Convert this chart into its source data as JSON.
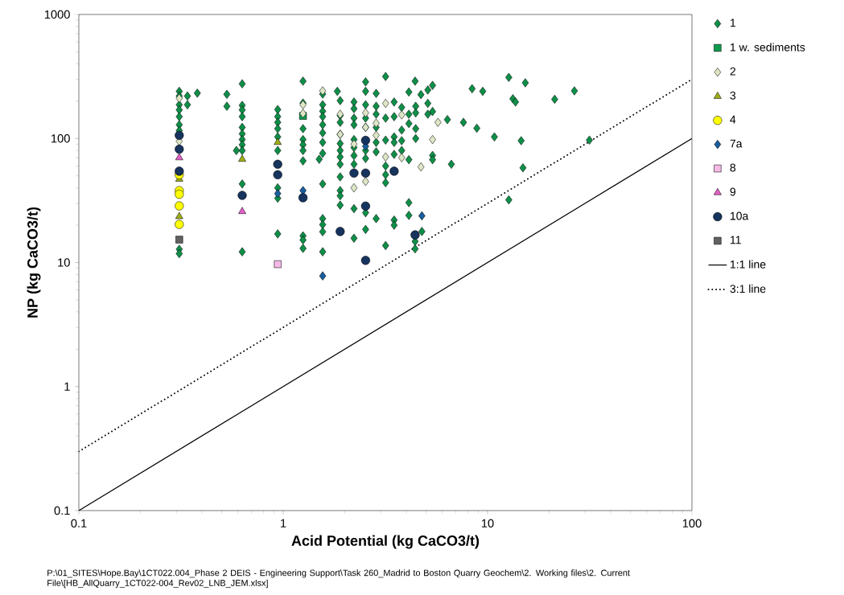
{
  "chart_data": {
    "type": "scatter",
    "xlabel": "Acid Potential (kg CaCO3/t)",
    "ylabel": "NP (kg CaCO3/t)",
    "log": "xy",
    "grid": false,
    "legend": "right",
    "xlim": [
      0.1,
      100
    ],
    "ylim": [
      0.1,
      1000
    ],
    "xticks": [
      0.1,
      1,
      10,
      100
    ],
    "yticks": [
      0.1,
      1,
      10,
      100,
      1000
    ],
    "annotations": [
      "P:\\01_SITES\\Hope.Bay\\1CT022.004_Phase 2 DEIS - Engineering Support\\Task 260_Madrid to Boston Quarry Geochem\\2. Working files\\2. Current File\\[HB_AllQuarry_1CT022-004_Rev02_LNB_JEM.xlsx]"
    ],
    "series": [
      {
        "name": "1",
        "marker": "diamond",
        "color": "#0e8f48",
        "x": [
          0.31,
          0.31,
          0.31,
          0.31,
          0.31,
          0.31,
          0.31,
          0.31,
          0.31,
          0.34,
          0.34,
          0.38,
          0.63,
          0.63,
          0.63,
          0.63,
          0.63,
          0.63,
          0.63,
          0.63,
          0.63,
          0.63,
          0.63,
          0.59,
          0.53,
          0.53,
          0.94,
          0.94,
          0.94,
          0.94,
          0.94,
          0.94,
          0.94,
          0.94,
          0.94,
          1.25,
          1.25,
          1.25,
          1.25,
          1.25,
          1.25,
          1.25,
          1.25,
          1.25,
          1.25,
          1.56,
          1.56,
          1.56,
          1.56,
          1.56,
          1.56,
          1.56,
          1.56,
          1.5,
          1.56,
          1.56,
          1.56,
          1.56,
          1.56,
          1.84,
          3.17,
          2.53,
          2.85,
          4.12,
          4.42,
          4.72,
          5.1,
          5.38,
          8.4,
          9.47,
          12.7,
          15.3,
          13.3,
          1.9,
          1.9,
          1.9,
          1.9,
          1.9,
          1.9,
          1.9,
          1.9,
          1.9,
          1.9,
          1.9,
          1.9,
          2.22,
          2.22,
          2.22,
          2.22,
          2.22,
          2.22,
          2.22,
          2.22,
          2.53,
          2.53,
          2.53,
          2.53,
          2.53,
          2.53,
          2.85,
          2.85,
          2.85,
          2.85,
          2.85,
          3.17,
          3.17,
          3.17,
          3.17,
          3.17,
          3.49,
          3.49,
          3.49,
          3.49,
          3.49,
          3.8,
          3.8,
          3.8,
          3.8,
          4.12,
          4.12,
          4.12,
          4.45,
          4.45,
          4.45,
          4.45,
          5.1,
          5.1,
          5.38,
          5.38,
          5.38,
          6.36,
          7.62,
          8.86,
          10.8,
          14.6,
          6.65,
          14.9,
          2.22,
          2.53,
          2.85,
          3.49,
          3.49,
          4.12,
          4.12,
          2.53,
          2.22,
          3.17,
          4.42,
          4.42,
          4.77,
          12.7,
          13.7,
          21.3,
          26.6,
          31.5
        ],
        "values": [
          240,
          220,
          187,
          170,
          150,
          129,
          116,
          12.8,
          11.8,
          220,
          187,
          232,
          276,
          185,
          170,
          150,
          123,
          109,
          98,
          89,
          80,
          43,
          12.2,
          80,
          227,
          182,
          171,
          150,
          135,
          120,
          103,
          80,
          40,
          33,
          17,
          290,
          193,
          120,
          98,
          89,
          80,
          66,
          16.4,
          15.2,
          13,
          228,
          187,
          166,
          150,
          129,
          111,
          93,
          76,
          68,
          43,
          22.6,
          20.2,
          17.7,
          12.2,
          240,
          316,
          286,
          231,
          237,
          290,
          226,
          246,
          268,
          252,
          240,
          311,
          281,
          209,
          202,
          153,
          135,
          108,
          91,
          80,
          71,
          62,
          49,
          38,
          34.5,
          29,
          197,
          174,
          146,
          129,
          98,
          84.5,
          72.8,
          62,
          240,
          187,
          146,
          123,
          80,
          69,
          182,
          157,
          123,
          93,
          78,
          146,
          97,
          60,
          51,
          44,
          197,
          150,
          103,
          93,
          74.5,
          178,
          117,
          96,
          80,
          157,
          132,
          67.5,
          182,
          161,
          120,
          100,
          192,
          157,
          165,
          73,
          67.5,
          142,
          135,
          121,
          103,
          96,
          62,
          58,
          27.2,
          25.2,
          22.6,
          22,
          20,
          30.4,
          24,
          18.5,
          15.7,
          13.7,
          14.8,
          12.9,
          17.8,
          32,
          197,
          207,
          242,
          97
        ]
      },
      {
        "name": "1 w. sediments",
        "marker": "square",
        "color": "#0f9a4e",
        "x": [
          1.25
        ],
        "values": [
          152
        ]
      },
      {
        "name": "2",
        "marker": "diamond",
        "color": "#dde6c6",
        "x": [
          0.31,
          0.31,
          1.25,
          1.25,
          1.56,
          1.9,
          1.9,
          2.22,
          2.53,
          2.53,
          2.85,
          2.85,
          3.17,
          3.17,
          3.8,
          3.8,
          4.72,
          5.38,
          5.72,
          2.53,
          2.22
        ],
        "values": [
          211,
          95,
          187,
          159,
          242,
          157,
          108,
          90,
          161,
          123,
          133,
          106,
          192,
          71,
          155,
          70,
          59,
          98,
          135,
          45,
          40
        ]
      },
      {
        "name": "3",
        "marker": "triangle",
        "color": "#9fae16",
        "x": [
          0.31,
          0.31,
          0.63,
          0.94
        ],
        "values": [
          47,
          23.5,
          68,
          93
        ]
      },
      {
        "name": "4",
        "marker": "circle",
        "color": "#ffff00",
        "x": [
          0.31,
          0.31,
          0.31,
          0.31,
          0.31
        ],
        "values": [
          51,
          38,
          35.5,
          28.6,
          20.3
        ]
      },
      {
        "name": "7a",
        "marker": "diamond",
        "color": "#1a5e9e",
        "x": [
          0.94,
          1.25,
          1.56,
          2.53,
          4.77
        ],
        "values": [
          36,
          38,
          7.8,
          86.5,
          23.8
        ]
      },
      {
        "name": "8",
        "marker": "square",
        "color": "#f5b9e6",
        "x": [
          0.94
        ],
        "values": [
          9.7
        ]
      },
      {
        "name": "9",
        "marker": "triangle",
        "color": "#e45fc8",
        "x": [
          0.31,
          0.63
        ],
        "values": [
          70,
          25.8
        ]
      },
      {
        "name": "10a",
        "marker": "circle",
        "color": "#17345e",
        "x": [
          0.31,
          0.31,
          0.31,
          0.63,
          0.94,
          0.94,
          1.25,
          2.53,
          2.22,
          2.53,
          3.49,
          2.53,
          1.9,
          4.42,
          2.53
        ],
        "values": [
          106,
          82,
          54.5,
          34.8,
          62,
          51,
          33.3,
          96.6,
          52.6,
          52.6,
          54.5,
          28.5,
          17.8,
          16.7,
          10.4
        ]
      },
      {
        "name": "11",
        "marker": "square",
        "color": "#616161",
        "x": [
          0.31
        ],
        "values": [
          15.3
        ]
      },
      {
        "name": "1:1 line",
        "type": "line",
        "line_style": "solid",
        "color": "#000000",
        "x": [
          0.1,
          100
        ],
        "values": [
          0.1,
          100
        ]
      },
      {
        "name": "3:1 line",
        "type": "line",
        "line_style": "dotted",
        "color": "#000000",
        "x": [
          0.1,
          100
        ],
        "values": [
          0.3,
          300
        ]
      }
    ]
  }
}
